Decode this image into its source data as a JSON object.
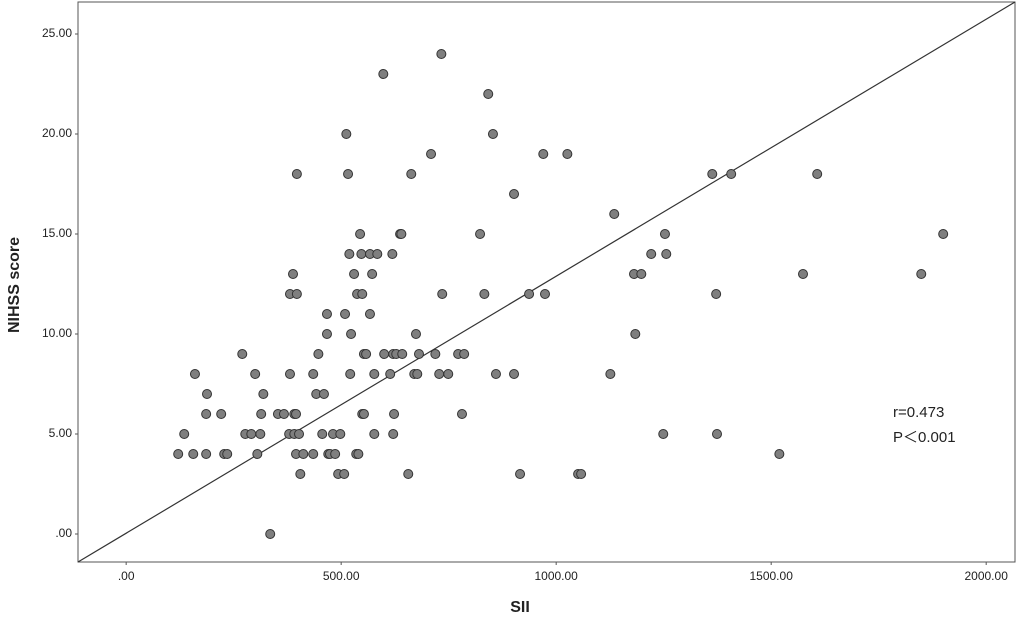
{
  "chart_data": {
    "type": "scatter",
    "x_label": "SII",
    "y_label": "NIHSS score",
    "annotations": [
      "r=0.473",
      "P＜0.001"
    ],
    "xlim": [
      -112,
      2067
    ],
    "ylim": [
      -1.4,
      26.6
    ],
    "xticks": [
      {
        "value": 0,
        "label": ".00"
      },
      {
        "value": 500,
        "label": "500.00"
      },
      {
        "value": 1000,
        "label": "1000.00"
      },
      {
        "value": 1500,
        "label": "1500.00"
      },
      {
        "value": 2000,
        "label": "2000.00"
      }
    ],
    "yticks": [
      {
        "value": 0,
        "label": ".00"
      },
      {
        "value": 5,
        "label": "5.00"
      },
      {
        "value": 10,
        "label": "10.00"
      },
      {
        "value": 15,
        "label": "15.00"
      },
      {
        "value": 20,
        "label": "20.00"
      },
      {
        "value": 25,
        "label": "25.00"
      }
    ],
    "color": "#7f7f7f",
    "fit_line": {
      "x": [
        -112,
        2067
      ],
      "y": [
        -1.4,
        26.6
      ]
    },
    "x": [
      121,
      135,
      160,
      156,
      188,
      186,
      186,
      221,
      228,
      235,
      270,
      277,
      291,
      300,
      305,
      312,
      314,
      319,
      335,
      353,
      367,
      379,
      381,
      381,
      388,
      391,
      391,
      395,
      397,
      397,
      395,
      402,
      405,
      412,
      435,
      435,
      447,
      442,
      456,
      460,
      467,
      467,
      470,
      474,
      481,
      486,
      493,
      498,
      507,
      509,
      512,
      516,
      519,
      521,
      523,
      530,
      535,
      537,
      540,
      544,
      549,
      547,
      549,
      553,
      553,
      558,
      567,
      567,
      572,
      577,
      577,
      584,
      598,
      600,
      614,
      619,
      621,
      623,
      621,
      628,
      637,
      640,
      642,
      656,
      663,
      670,
      674,
      677,
      681,
      709,
      719,
      728,
      733,
      735,
      749,
      772,
      781,
      786,
      823,
      833,
      842,
      853,
      860,
      902,
      902,
      916,
      937,
      970,
      974,
      1026,
      1051,
      1058,
      1126,
      1135,
      1181,
      1184,
      1198,
      1221,
      1249,
      1253,
      1256,
      1363,
      1372,
      1374,
      1407,
      1519,
      1574,
      1607,
      1849,
      1900
    ],
    "values": [
      4,
      5,
      8,
      4,
      7,
      6,
      4,
      6,
      4,
      4,
      9,
      5,
      5,
      8,
      4,
      5,
      6,
      7,
      0,
      6,
      6,
      5,
      8,
      12,
      13,
      6,
      5,
      6,
      12,
      18,
      4,
      5,
      3,
      4,
      4,
      8,
      9,
      7,
      5,
      7,
      11,
      10,
      4,
      4,
      5,
      4,
      3,
      5,
      3,
      11,
      20,
      18,
      14,
      8,
      10,
      13,
      4,
      12,
      4,
      15,
      12,
      14,
      6,
      6,
      9,
      9,
      14,
      11,
      13,
      8,
      5,
      14,
      23,
      9,
      8,
      14,
      9,
      6,
      5,
      9,
      15,
      15,
      9,
      3,
      18,
      8,
      10,
      8,
      9,
      19,
      9,
      8,
      24,
      12,
      8,
      9,
      6,
      9,
      15,
      12,
      22,
      20,
      8,
      8,
      17,
      3,
      12,
      19,
      12,
      19,
      3,
      3,
      8,
      16,
      13,
      10,
      13,
      14,
      5,
      15,
      14,
      18,
      12,
      5,
      18,
      4,
      13,
      18,
      13,
      15
    ]
  }
}
